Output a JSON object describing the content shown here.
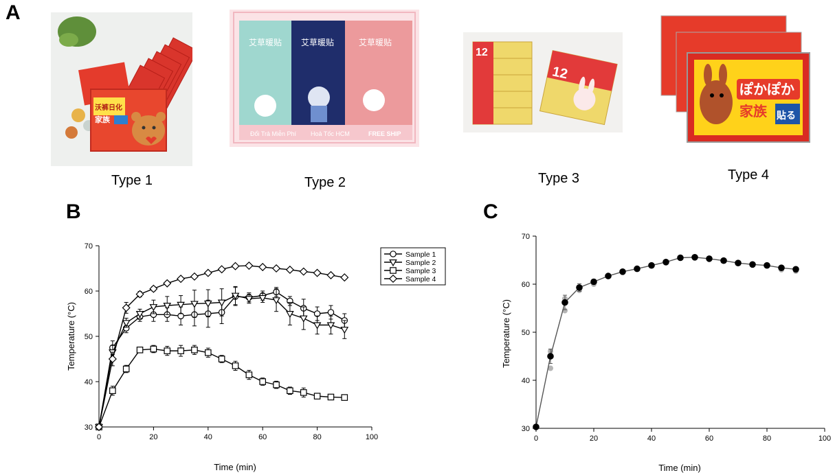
{
  "figure": {
    "panel_a": "A",
    "panel_b": "B",
    "panel_c": "C",
    "types": [
      "Type 1",
      "Type 2",
      "Type 3",
      "Type 4"
    ],
    "product_text": {
      "type1": "沃裤日化 家族 暖贴",
      "type2_label": "艾草暖贴",
      "type2_banner": [
        "Đổi Trả Miễn Phí",
        "Hoả Tốc HCM",
        "FREE SHIP"
      ],
      "type3": "12",
      "type4": "ぽかぽか 家族 貼る"
    }
  },
  "chart_data": [
    {
      "type": "line",
      "panel": "B",
      "xlabel": "Time (min)",
      "ylabel": "Temperature (°C)",
      "xlim": [
        0,
        100
      ],
      "ylim": [
        30,
        70
      ],
      "xticks": [
        0,
        20,
        40,
        60,
        80,
        100
      ],
      "yticks": [
        30,
        40,
        50,
        60,
        70
      ],
      "legend": "top-right",
      "grid": false,
      "x": [
        0,
        5,
        10,
        15,
        20,
        25,
        30,
        35,
        40,
        45,
        50,
        55,
        60,
        65,
        70,
        75,
        80,
        85,
        90
      ],
      "series": [
        {
          "name": "Sample 1",
          "marker": "circle",
          "values": [
            30,
            47.5,
            51.8,
            54.3,
            54.8,
            54.8,
            54.5,
            54.8,
            55.0,
            55.3,
            58.8,
            58.6,
            59.0,
            59.8,
            57.8,
            56.2,
            55.0,
            55.3,
            53.5
          ],
          "err": [
            0,
            1.5,
            1.0,
            1.0,
            1.5,
            1.5,
            2.0,
            2.5,
            3.0,
            2.5,
            2.0,
            1.0,
            1.0,
            1.0,
            1.0,
            2.0,
            1.5,
            1.5,
            1.5
          ]
        },
        {
          "name": "Sample 2",
          "marker": "triangle-down",
          "values": [
            30,
            46.5,
            53.0,
            55.0,
            56.5,
            56.8,
            57.0,
            57.2,
            57.3,
            57.5,
            59.0,
            58.3,
            58.5,
            58.0,
            55.0,
            54.0,
            52.5,
            52.5,
            51.5
          ],
          "err": [
            0,
            1.5,
            1.0,
            1.0,
            1.5,
            2.0,
            2.0,
            3.0,
            3.0,
            3.0,
            2.0,
            1.0,
            1.0,
            2.5,
            2.5,
            2.5,
            2.0,
            2.0,
            2.0
          ]
        },
        {
          "name": "Sample 3",
          "marker": "square",
          "values": [
            30,
            38.0,
            42.8,
            47.0,
            47.2,
            46.8,
            46.8,
            47.0,
            46.4,
            45.0,
            43.5,
            41.5,
            40.0,
            39.3,
            38.0,
            37.6,
            36.8,
            36.6,
            36.5
          ],
          "err": [
            0,
            1.0,
            0.8,
            0.6,
            0.8,
            1.0,
            1.2,
            1.0,
            1.0,
            0.8,
            1.0,
            1.0,
            0.8,
            0.8,
            0.8,
            1.0,
            0.6,
            0.6,
            0.6
          ]
        },
        {
          "name": "Sample 4",
          "marker": "diamond",
          "values": [
            30,
            45.0,
            56.3,
            59.3,
            60.5,
            61.7,
            62.7,
            63.2,
            64.0,
            64.8,
            65.5,
            65.6,
            65.3,
            65.0,
            64.7,
            64.3,
            64.0,
            63.5,
            63.0
          ],
          "err": [
            0,
            1.5,
            1.2,
            0.6,
            0.5,
            0.4,
            0.4,
            0.4,
            0.4,
            0.4,
            0.4,
            0.4,
            0.4,
            0.4,
            0.4,
            0.4,
            0.4,
            0.4,
            0.4
          ]
        }
      ]
    },
    {
      "type": "line",
      "panel": "C",
      "xlabel": "Time (min)",
      "ylabel": "Temperature (°C)",
      "xlim": [
        0,
        100
      ],
      "ylim": [
        30,
        70
      ],
      "xticks": [
        0,
        20,
        40,
        60,
        80,
        100
      ],
      "yticks": [
        30,
        40,
        50,
        60,
        70
      ],
      "grid": false,
      "x": [
        0,
        5,
        10,
        15,
        20,
        25,
        30,
        35,
        40,
        45,
        50,
        55,
        60,
        65,
        70,
        75,
        80,
        85,
        90
      ],
      "series": [
        {
          "marker": "filled-circle",
          "values": [
            30.3,
            45.0,
            56.2,
            59.3,
            60.5,
            61.7,
            62.6,
            63.2,
            63.9,
            64.6,
            65.5,
            65.6,
            65.3,
            64.9,
            64.4,
            64.1,
            63.9,
            63.4,
            63.1
          ],
          "err": [
            0,
            1.5,
            1.5,
            0.8,
            0.5,
            0.4,
            0.4,
            0.4,
            0.4,
            0.4,
            0.4,
            0.4,
            0.4,
            0.4,
            0.4,
            0.4,
            0.4,
            0.4,
            0.4
          ]
        }
      ],
      "replicates": [
        {
          "x": 5,
          "y": 46.0
        },
        {
          "x": 5,
          "y": 42.5
        },
        {
          "x": 10,
          "y": 54.5
        },
        {
          "x": 10,
          "y": 57.0
        },
        {
          "x": 15,
          "y": 58.7
        },
        {
          "x": 20,
          "y": 60.0
        },
        {
          "x": 85,
          "y": 63.0
        },
        {
          "x": 90,
          "y": 62.7
        }
      ]
    }
  ]
}
